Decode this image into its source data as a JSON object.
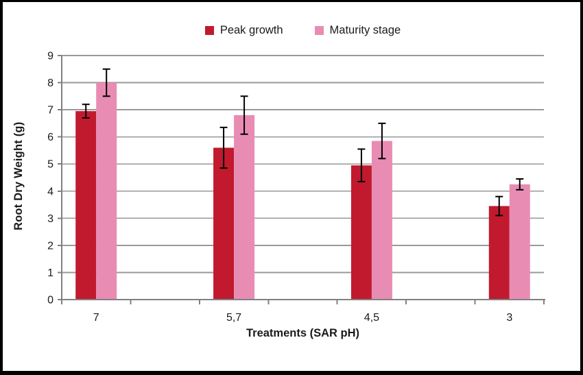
{
  "chart_data": {
    "type": "bar",
    "title": "",
    "categories": [
      "7",
      "5,7",
      "4,5",
      "3"
    ],
    "series": [
      {
        "name": "Peak growth",
        "color": "#C11A2E",
        "values": [
          6.95,
          5.6,
          4.95,
          3.45
        ],
        "error_bars": [
          0.25,
          0.75,
          0.6,
          0.35
        ]
      },
      {
        "name": "Maturity stage",
        "color": "#E98CB4",
        "values": [
          8.0,
          6.8,
          5.85,
          4.25
        ],
        "error_bars": [
          0.5,
          0.7,
          0.65,
          0.2
        ]
      }
    ],
    "xlabel": "Treatments (SAR pH)",
    "ylabel": "Root Dry Weight (g)",
    "ylim": [
      0,
      9
    ],
    "ytick_step": 1,
    "grid": true,
    "legend_position": "top-center",
    "error_bar_color": "#000000"
  },
  "colors": {
    "grid": "#999999",
    "axis": "#808080",
    "tick_text": "#1a1a1a",
    "background": "#ffffff",
    "frame": "#000000"
  }
}
